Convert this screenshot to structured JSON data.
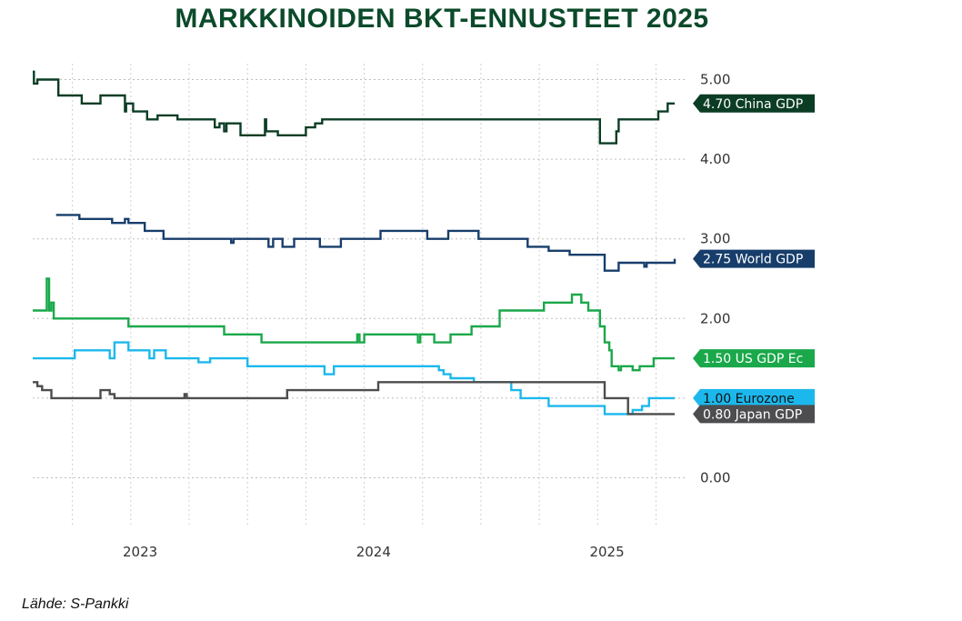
{
  "title": "MARKKINOIDEN BKT-ENNUSTEET 2025",
  "source": "Lähde: S-Pankki",
  "chart_data": {
    "type": "line",
    "ylim": [
      -0.6,
      5.2
    ],
    "xlim": [
      2022.58,
      2025.33
    ],
    "y_ticks": [
      0,
      1,
      2,
      3,
      4,
      5
    ],
    "y_tick_labels": [
      "0.00",
      "1.00",
      "2.00",
      "3.00",
      "4.00",
      "5.00"
    ],
    "x_ticks": [
      2023,
      2024,
      2025
    ],
    "x_tick_labels": [
      "2023",
      "2024",
      "2025"
    ],
    "grid": true,
    "legend": "right-side value tags",
    "series": [
      {
        "name": "China GDP",
        "tag": "4.70 China GDP",
        "color": "#0b3d24",
        "text_color": "#ffffff",
        "points": [
          [
            2022.58,
            5.1
          ],
          [
            2022.585,
            4.95
          ],
          [
            2022.6,
            5.0
          ],
          [
            2022.68,
            5.0
          ],
          [
            2022.69,
            4.8
          ],
          [
            2022.78,
            4.8
          ],
          [
            2022.79,
            4.7
          ],
          [
            2022.86,
            4.7
          ],
          [
            2022.87,
            4.8
          ],
          [
            2022.97,
            4.8
          ],
          [
            2022.975,
            4.6
          ],
          [
            2022.98,
            4.7
          ],
          [
            2023.0,
            4.7
          ],
          [
            2023.01,
            4.6
          ],
          [
            2023.06,
            4.6
          ],
          [
            2023.07,
            4.5
          ],
          [
            2023.11,
            4.5
          ],
          [
            2023.115,
            4.55
          ],
          [
            2023.2,
            4.5
          ],
          [
            2023.35,
            4.5
          ],
          [
            2023.36,
            4.4
          ],
          [
            2023.38,
            4.45
          ],
          [
            2023.4,
            4.35
          ],
          [
            2023.41,
            4.45
          ],
          [
            2023.47,
            4.3
          ],
          [
            2023.57,
            4.3
          ],
          [
            2023.575,
            4.5
          ],
          [
            2023.58,
            4.35
          ],
          [
            2023.62,
            4.35
          ],
          [
            2023.63,
            4.3
          ],
          [
            2023.74,
            4.3
          ],
          [
            2023.75,
            4.4
          ],
          [
            2023.78,
            4.4
          ],
          [
            2023.79,
            4.45
          ],
          [
            2023.82,
            4.5
          ],
          [
            2025.0,
            4.5
          ],
          [
            2025.01,
            4.2
          ],
          [
            2025.07,
            4.2
          ],
          [
            2025.08,
            4.35
          ],
          [
            2025.09,
            4.5
          ],
          [
            2025.25,
            4.5
          ],
          [
            2025.26,
            4.6
          ],
          [
            2025.29,
            4.6
          ],
          [
            2025.3,
            4.7
          ],
          [
            2025.33,
            4.7
          ]
        ]
      },
      {
        "name": "World GDP",
        "tag": "2.75 World GDP",
        "color": "#173e6b",
        "text_color": "#ffffff",
        "points": [
          [
            2022.68,
            3.3
          ],
          [
            2022.77,
            3.3
          ],
          [
            2022.78,
            3.25
          ],
          [
            2022.92,
            3.2
          ],
          [
            2022.97,
            3.2
          ],
          [
            2022.975,
            3.25
          ],
          [
            2022.99,
            3.2
          ],
          [
            2023.05,
            3.2
          ],
          [
            2023.06,
            3.1
          ],
          [
            2023.13,
            3.1
          ],
          [
            2023.14,
            3.0
          ],
          [
            2023.42,
            3.0
          ],
          [
            2023.43,
            2.95
          ],
          [
            2023.44,
            3.0
          ],
          [
            2023.58,
            3.0
          ],
          [
            2023.59,
            2.9
          ],
          [
            2023.61,
            3.0
          ],
          [
            2023.64,
            3.0
          ],
          [
            2023.65,
            2.9
          ],
          [
            2023.69,
            2.9
          ],
          [
            2023.7,
            3.0
          ],
          [
            2023.8,
            3.0
          ],
          [
            2023.81,
            2.9
          ],
          [
            2023.89,
            2.9
          ],
          [
            2023.9,
            3.0
          ],
          [
            2024.06,
            3.0
          ],
          [
            2024.07,
            3.1
          ],
          [
            2024.26,
            3.1
          ],
          [
            2024.27,
            3.0
          ],
          [
            2024.35,
            3.0
          ],
          [
            2024.36,
            3.1
          ],
          [
            2024.48,
            3.1
          ],
          [
            2024.49,
            3.0
          ],
          [
            2024.69,
            3.0
          ],
          [
            2024.7,
            2.9
          ],
          [
            2024.78,
            2.9
          ],
          [
            2024.79,
            2.85
          ],
          [
            2024.87,
            2.85
          ],
          [
            2024.88,
            2.8
          ],
          [
            2025.02,
            2.8
          ],
          [
            2025.03,
            2.6
          ],
          [
            2025.08,
            2.6
          ],
          [
            2025.09,
            2.7
          ],
          [
            2025.19,
            2.7
          ],
          [
            2025.2,
            2.65
          ],
          [
            2025.21,
            2.7
          ],
          [
            2025.32,
            2.7
          ],
          [
            2025.33,
            2.75
          ]
        ]
      },
      {
        "name": "US GDP Ec",
        "tag": "1.50 US GDP Ec",
        "color": "#1aa84a",
        "text_color": "#ffffff",
        "points": [
          [
            2022.58,
            2.1
          ],
          [
            2022.63,
            2.1
          ],
          [
            2022.64,
            2.5
          ],
          [
            2022.65,
            2.1
          ],
          [
            2022.66,
            2.2
          ],
          [
            2022.67,
            2.0
          ],
          [
            2022.98,
            2.0
          ],
          [
            2022.99,
            1.9
          ],
          [
            2023.39,
            1.9
          ],
          [
            2023.4,
            1.8
          ],
          [
            2023.55,
            1.8
          ],
          [
            2023.56,
            1.7
          ],
          [
            2023.96,
            1.7
          ],
          [
            2023.97,
            1.8
          ],
          [
            2023.98,
            1.7
          ],
          [
            2024.0,
            1.8
          ],
          [
            2024.22,
            1.8
          ],
          [
            2024.23,
            1.7
          ],
          [
            2024.24,
            1.8
          ],
          [
            2024.29,
            1.8
          ],
          [
            2024.3,
            1.7
          ],
          [
            2024.36,
            1.7
          ],
          [
            2024.37,
            1.8
          ],
          [
            2024.45,
            1.8
          ],
          [
            2024.46,
            1.9
          ],
          [
            2024.54,
            1.9
          ],
          [
            2024.58,
            2.1
          ],
          [
            2024.76,
            2.1
          ],
          [
            2024.77,
            2.2
          ],
          [
            2024.88,
            2.2
          ],
          [
            2024.89,
            2.3
          ],
          [
            2024.92,
            2.3
          ],
          [
            2024.93,
            2.2
          ],
          [
            2024.95,
            2.2
          ],
          [
            2024.96,
            2.1
          ],
          [
            2025.0,
            2.1
          ],
          [
            2025.01,
            1.9
          ],
          [
            2025.03,
            1.7
          ],
          [
            2025.05,
            1.6
          ],
          [
            2025.06,
            1.4
          ],
          [
            2025.09,
            1.35
          ],
          [
            2025.1,
            1.4
          ],
          [
            2025.14,
            1.4
          ],
          [
            2025.15,
            1.35
          ],
          [
            2025.18,
            1.4
          ],
          [
            2025.23,
            1.4
          ],
          [
            2025.24,
            1.5
          ],
          [
            2025.33,
            1.5
          ]
        ]
      },
      {
        "name": "Eurozone",
        "tag": "1.00 Eurozone",
        "color": "#1cb8ec",
        "text_color": "#111111",
        "points": [
          [
            2022.58,
            1.5
          ],
          [
            2022.75,
            1.5
          ],
          [
            2022.76,
            1.6
          ],
          [
            2022.9,
            1.6
          ],
          [
            2022.91,
            1.5
          ],
          [
            2022.93,
            1.7
          ],
          [
            2022.98,
            1.7
          ],
          [
            2022.99,
            1.6
          ],
          [
            2023.07,
            1.6
          ],
          [
            2023.08,
            1.5
          ],
          [
            2023.1,
            1.6
          ],
          [
            2023.14,
            1.6
          ],
          [
            2023.15,
            1.5
          ],
          [
            2023.28,
            1.5
          ],
          [
            2023.29,
            1.45
          ],
          [
            2023.33,
            1.45
          ],
          [
            2023.34,
            1.5
          ],
          [
            2023.49,
            1.5
          ],
          [
            2023.5,
            1.4
          ],
          [
            2023.82,
            1.4
          ],
          [
            2023.83,
            1.3
          ],
          [
            2023.86,
            1.3
          ],
          [
            2023.87,
            1.4
          ],
          [
            2024.31,
            1.4
          ],
          [
            2024.32,
            1.35
          ],
          [
            2024.34,
            1.3
          ],
          [
            2024.36,
            1.3
          ],
          [
            2024.37,
            1.25
          ],
          [
            2024.46,
            1.25
          ],
          [
            2024.47,
            1.2
          ],
          [
            2024.62,
            1.2
          ],
          [
            2024.63,
            1.1
          ],
          [
            2024.66,
            1.1
          ],
          [
            2024.67,
            1.0
          ],
          [
            2024.78,
            1.0
          ],
          [
            2024.79,
            0.9
          ],
          [
            2025.02,
            0.9
          ],
          [
            2025.03,
            0.8
          ],
          [
            2025.13,
            0.8
          ],
          [
            2025.15,
            0.85
          ],
          [
            2025.18,
            0.85
          ],
          [
            2025.19,
            0.9
          ],
          [
            2025.22,
            1.0
          ],
          [
            2025.33,
            1.0
          ]
        ]
      },
      {
        "name": "Japan GDP",
        "tag": "0.80 Japan GDP",
        "color": "#4d4d4f",
        "text_color": "#ffffff",
        "points": [
          [
            2022.58,
            1.2
          ],
          [
            2022.6,
            1.15
          ],
          [
            2022.62,
            1.1
          ],
          [
            2022.65,
            1.1
          ],
          [
            2022.66,
            1.0
          ],
          [
            2022.86,
            1.0
          ],
          [
            2022.87,
            1.1
          ],
          [
            2022.9,
            1.1
          ],
          [
            2022.91,
            1.05
          ],
          [
            2022.93,
            1.0
          ],
          [
            2023.22,
            1.0
          ],
          [
            2023.23,
            1.05
          ],
          [
            2023.24,
            1.0
          ],
          [
            2023.66,
            1.0
          ],
          [
            2023.67,
            1.1
          ],
          [
            2024.05,
            1.1
          ],
          [
            2024.06,
            1.2
          ],
          [
            2025.02,
            1.2
          ],
          [
            2025.03,
            1.0
          ],
          [
            2025.12,
            1.0
          ],
          [
            2025.13,
            0.8
          ],
          [
            2025.33,
            0.8
          ]
        ]
      }
    ]
  }
}
